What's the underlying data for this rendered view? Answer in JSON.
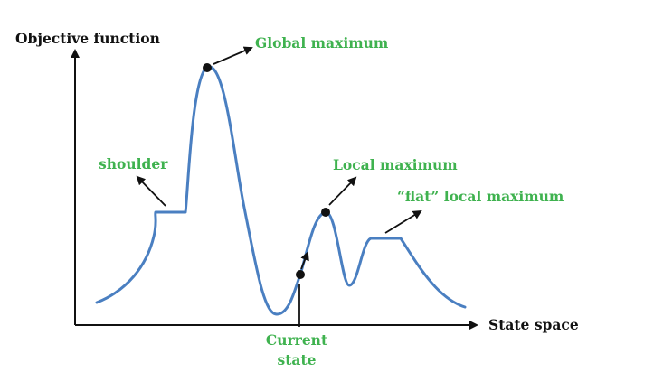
{
  "axes": {
    "y_label": "Objective function",
    "x_label": "State space"
  },
  "annotations": {
    "global_max": "Global maximum",
    "shoulder": "shoulder",
    "local_max": "Local maximum",
    "flat_local_max": "“flat” local maximum",
    "current_state_line1": "Current",
    "current_state_line2": "state"
  },
  "colors": {
    "curve": "#4a7fc1",
    "label_green": "#3fb24f",
    "axis": "#111111"
  }
}
